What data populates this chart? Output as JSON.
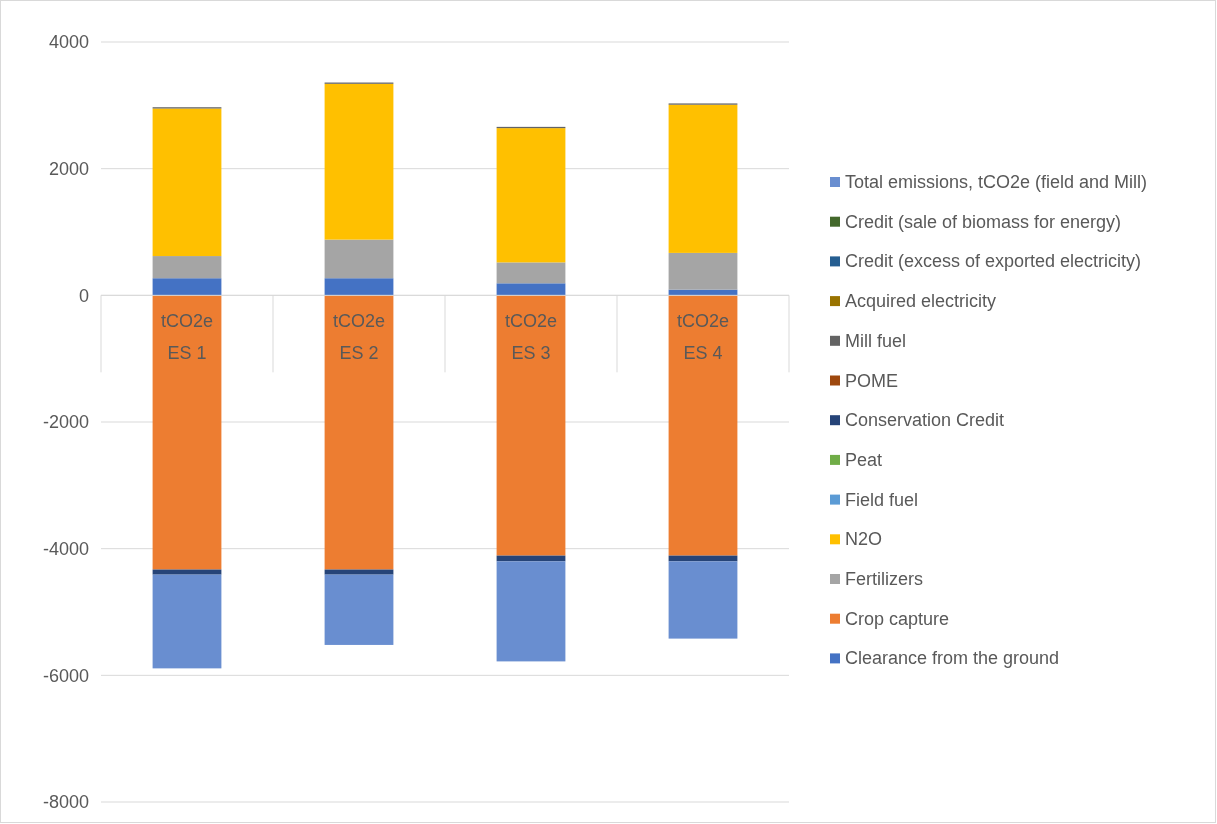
{
  "chart_data": {
    "type": "bar",
    "stacked": true,
    "categories": [
      "tCO2e\nES 1",
      "tCO2e\nES 2",
      "tCO2e\nES 3",
      "tCO2e\nES 4"
    ],
    "series": [
      {
        "name": "Clearance from the ground",
        "color": "#4472c4",
        "values": [
          270,
          270,
          190,
          90
        ]
      },
      {
        "name": "Crop capture",
        "color": "#ed7d31",
        "values": [
          -4330,
          -4330,
          -4110,
          -4110
        ]
      },
      {
        "name": "Fertilizers",
        "color": "#a5a5a5",
        "values": [
          350,
          610,
          330,
          580
        ]
      },
      {
        "name": "N2O",
        "color": "#ffc000",
        "values": [
          2330,
          2460,
          2120,
          2340
        ]
      },
      {
        "name": "Field fuel",
        "color": "#5b9bd5",
        "values": [
          0,
          0,
          0,
          0
        ]
      },
      {
        "name": "Peat",
        "color": "#70ad47",
        "values": [
          0,
          0,
          0,
          0
        ]
      },
      {
        "name": "Conservation Credit",
        "color": "#264478",
        "values": [
          -80,
          -80,
          -90,
          -90
        ]
      },
      {
        "name": "POME",
        "color": "#9e480e",
        "values": [
          0,
          0,
          0,
          0
        ]
      },
      {
        "name": "Mill fuel",
        "color": "#636363",
        "values": [
          20,
          20,
          20,
          20
        ]
      },
      {
        "name": "Acquired electricity",
        "color": "#997300",
        "values": [
          0,
          0,
          0,
          0
        ]
      },
      {
        "name": "Credit (excess of exported electricity)",
        "color": "#255e91",
        "values": [
          0,
          0,
          0,
          0
        ]
      },
      {
        "name": "Credit (sale of biomass for energy)",
        "color": "#43682b",
        "values": [
          0,
          0,
          0,
          0
        ]
      },
      {
        "name": "Total emissions, tCO2e (field and Mill)",
        "color": "#698ed0",
        "values": [
          -1480,
          -1110,
          -1580,
          -1220
        ]
      }
    ],
    "ylim": [
      -8000,
      4000
    ],
    "yticks": [
      -8000,
      -6000,
      -4000,
      -2000,
      0,
      2000,
      4000
    ],
    "grid": "y",
    "legend": "right"
  }
}
